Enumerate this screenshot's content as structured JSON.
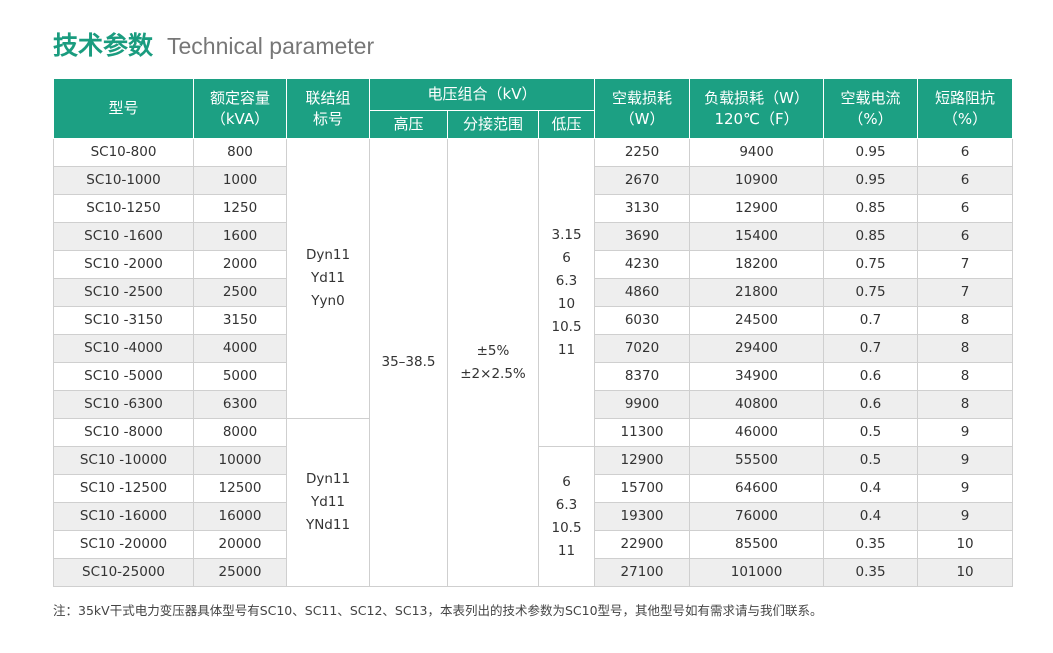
{
  "header": {
    "title_cn": "技术参数",
    "title_en": "Technical parameter"
  },
  "table": {
    "headers": {
      "model": [
        "型号"
      ],
      "capacity": [
        "额定容量",
        "（kVA）"
      ],
      "connection": [
        "联结组",
        "标号"
      ],
      "voltage": [
        "电压组合（kV）"
      ],
      "hv": [
        "高压"
      ],
      "tap": [
        "分接范围"
      ],
      "lv": [
        "低压"
      ],
      "noload_loss": [
        "空载损耗",
        "（W）"
      ],
      "load_loss": [
        "负载损耗（W）",
        "120℃（F）"
      ],
      "noload_current": [
        "空载电流",
        "（%）"
      ],
      "impedance": [
        "短路阻抗",
        "（%）"
      ]
    },
    "rows": [
      [
        "SC10-800",
        "800",
        "2250",
        "9400",
        "0.95",
        "6"
      ],
      [
        "SC10-1000",
        "1000",
        "2670",
        "10900",
        "0.95",
        "6"
      ],
      [
        "SC10-1250",
        "1250",
        "3130",
        "12900",
        "0.85",
        "6"
      ],
      [
        "SC10 -1600",
        "1600",
        "3690",
        "15400",
        "0.85",
        "6"
      ],
      [
        "SC10 -2000",
        "2000",
        "4230",
        "18200",
        "0.75",
        "7"
      ],
      [
        "SC10 -2500",
        "2500",
        "4860",
        "21800",
        "0.75",
        "7"
      ],
      [
        "SC10 -3150",
        "3150",
        "6030",
        "24500",
        "0.7",
        "8"
      ],
      [
        "SC10 -4000",
        "4000",
        "7020",
        "29400",
        "0.7",
        "8"
      ],
      [
        "SC10 -5000",
        "5000",
        "8370",
        "34900",
        "0.6",
        "8"
      ],
      [
        "SC10 -6300",
        "6300",
        "9900",
        "40800",
        "0.6",
        "8"
      ],
      [
        "SC10 -8000",
        "8000",
        "11300",
        "46000",
        "0.5",
        "9"
      ],
      [
        "SC10 -10000",
        "10000",
        "12900",
        "55500",
        "0.5",
        "9"
      ],
      [
        "SC10 -12500",
        "12500",
        "15700",
        "64600",
        "0.4",
        "9"
      ],
      [
        "SC10 -16000",
        "16000",
        "19300",
        "76000",
        "0.4",
        "9"
      ],
      [
        "SC10 -20000",
        "20000",
        "22900",
        "85500",
        "0.35",
        "10"
      ],
      [
        "SC10-25000",
        "25000",
        "27100",
        "101000",
        "0.35",
        "10"
      ]
    ],
    "connection_groups": [
      [
        "Dyn11",
        "Yd11",
        "Yyn0"
      ],
      [
        "Dyn11",
        "Yd11",
        "YNd11"
      ]
    ],
    "hv": [
      "35–38.5"
    ],
    "tap": [
      "±5%",
      "±2×2.5%"
    ],
    "lv_groups": [
      [
        "3.15",
        "6",
        "6.3",
        "10",
        "10.5",
        "11"
      ],
      [
        "6",
        "6.3",
        "10.5",
        "11"
      ]
    ]
  },
  "note": "注：35kV干式电力变压器具体型号有SC10、SC11、SC12、SC13，本表列出的技术参数为SC10型号，其他型号如有需求请与我们联系。"
}
